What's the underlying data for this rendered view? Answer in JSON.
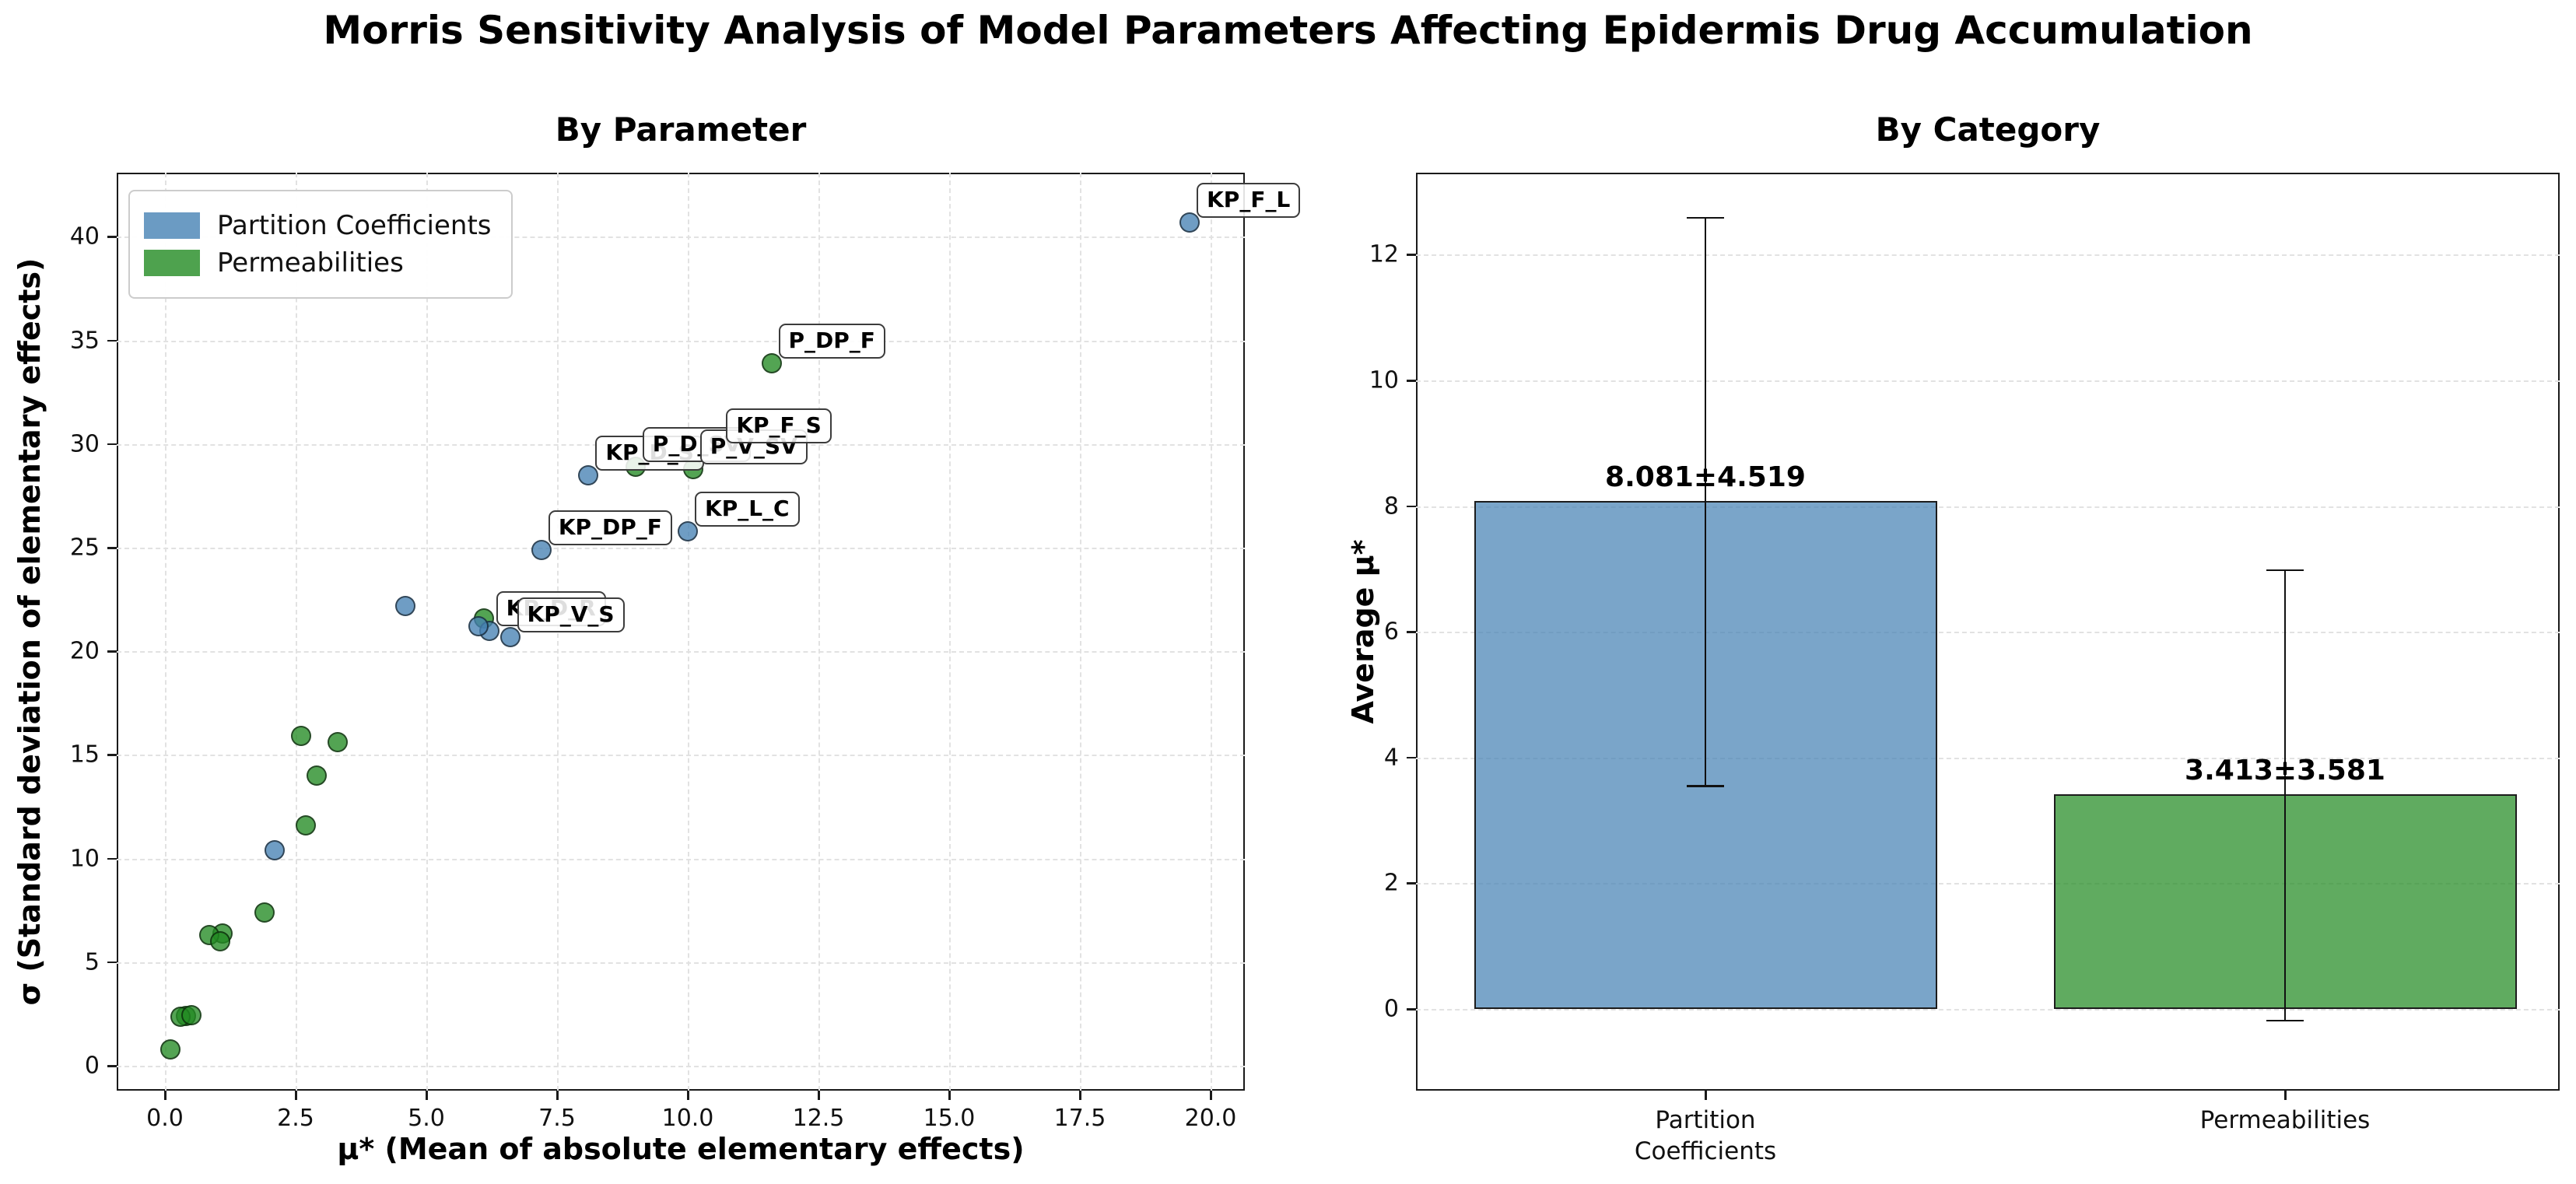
{
  "title": "Morris Sensitivity Analysis of Model Parameters Affecting Epidermis Drug Accumulation",
  "colors": {
    "partition": "#4682B4",
    "permeability": "#228B22",
    "spine": "#1a1a1a",
    "grid": "#e2e2e2",
    "annotation_border": "#3c3c3c"
  },
  "chart_data": [
    {
      "type": "scatter",
      "title": "By Parameter",
      "xlabel": "μ* (Mean of absolute elementary effects)",
      "ylabel": "σ (Standard deviation of elementary effects)",
      "xlim": [
        -0.92,
        20.65
      ],
      "ylim": [
        -1.2,
        43.3
      ],
      "xticks": [
        "0.0",
        "2.5",
        "5.0",
        "7.5",
        "10.0",
        "12.5",
        "15.0",
        "17.5",
        "20.0"
      ],
      "yticks": [
        0,
        5,
        10,
        15,
        20,
        25,
        30,
        35,
        40
      ],
      "grid": true,
      "legend": {
        "position": "upper left",
        "entries": [
          {
            "label": "Partition Coefficients",
            "color": "#4682B4"
          },
          {
            "label": "Permeabilities",
            "color": "#228B22"
          }
        ]
      },
      "series": [
        {
          "name": "Permeabilities",
          "color": "#228B22",
          "points": [
            {
              "x": 11.6,
              "y": 33.9,
              "label": "P_DP_F"
            },
            {
              "x": 10.1,
              "y": 28.8,
              "label": "P_V_SV"
            },
            {
              "x": 9.0,
              "y": 28.9,
              "label": "P_D_SV"
            },
            {
              "x": 6.1,
              "y": 21.6,
              "label": null
            },
            {
              "x": 3.3,
              "y": 15.6,
              "label": null
            },
            {
              "x": 2.6,
              "y": 15.9,
              "label": null
            },
            {
              "x": 2.9,
              "y": 14.0,
              "label": null
            },
            {
              "x": 2.7,
              "y": 11.6,
              "label": null
            },
            {
              "x": 1.9,
              "y": 7.4,
              "label": null
            },
            {
              "x": 1.1,
              "y": 6.4,
              "label": null
            },
            {
              "x": 0.85,
              "y": 6.3,
              "label": null
            },
            {
              "x": 1.05,
              "y": 6.0,
              "label": null
            },
            {
              "x": 0.4,
              "y": 2.4,
              "label": null
            },
            {
              "x": 0.3,
              "y": 2.35,
              "label": null
            },
            {
              "x": 0.5,
              "y": 2.45,
              "label": null
            },
            {
              "x": 0.1,
              "y": 0.8,
              "label": null
            }
          ]
        },
        {
          "name": "Partition Coefficients",
          "color": "#4682B4",
          "points": [
            {
              "x": 19.6,
              "y": 40.7,
              "label": "KP_F_L"
            },
            {
              "x": 10.6,
              "y": 29.8,
              "label": "KP_F_S"
            },
            {
              "x": 10.0,
              "y": 25.8,
              "label": "KP_L_C"
            },
            {
              "x": 8.1,
              "y": 28.5,
              "label": "KP_D_S"
            },
            {
              "x": 7.2,
              "y": 24.9,
              "label": "KP_DP_F"
            },
            {
              "x": 6.6,
              "y": 20.7,
              "label": "KP_V_S"
            },
            {
              "x": 6.2,
              "y": 21.0,
              "label": "KP_D_R"
            },
            {
              "x": 6.0,
              "y": 21.2,
              "label": null
            },
            {
              "x": 4.6,
              "y": 22.2,
              "label": null
            },
            {
              "x": 2.1,
              "y": 10.4,
              "label": null
            }
          ]
        }
      ]
    },
    {
      "type": "bar",
      "title": "By Category",
      "ylabel": "Average μ*",
      "categories": [
        [
          "Partition",
          "Coefficients"
        ],
        [
          "Permeabilities"
        ]
      ],
      "values": [
        8.081,
        3.413
      ],
      "errors": [
        4.519,
        3.581
      ],
      "bar_labels": [
        "8.081±4.519",
        "3.413±3.581"
      ],
      "bar_colors": [
        "#4682B4",
        "#228B22"
      ],
      "yticks": [
        0,
        2,
        4,
        6,
        8,
        10,
        12
      ],
      "ylim": [
        -1.3,
        13.3
      ],
      "grid": true,
      "legend_position": "none"
    }
  ]
}
